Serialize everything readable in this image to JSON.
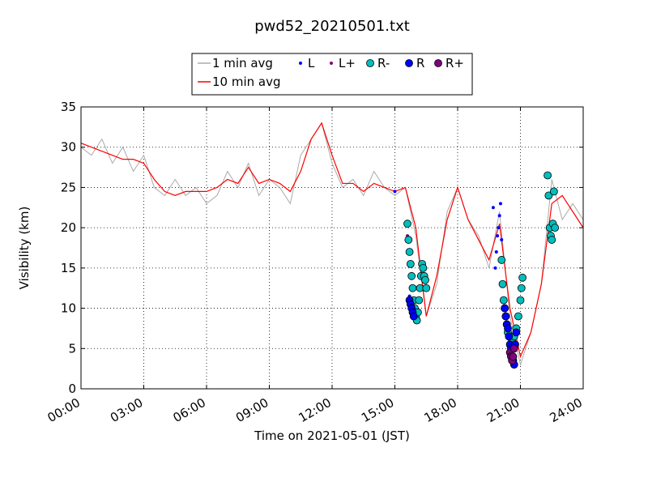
{
  "chart_data": {
    "type": "line",
    "title": "pwd52_20210501.txt",
    "xlabel": "Time on 2021-05-01 (JST)",
    "ylabel": "Visibility (km)",
    "xlim": [
      "00:00",
      "24:00"
    ],
    "ylim": [
      0,
      35
    ],
    "x_unit": "hour of day (JST)",
    "x_ticks": [
      0,
      3,
      6,
      9,
      12,
      15,
      18,
      21,
      24
    ],
    "x_tick_labels": [
      "00:00",
      "03:00",
      "06:00",
      "09:00",
      "12:00",
      "15:00",
      "18:00",
      "21:00",
      "24:00"
    ],
    "y_ticks": [
      0,
      5,
      10,
      15,
      20,
      25,
      30,
      35
    ],
    "y_tick_labels": [
      "0",
      "5",
      "10",
      "15",
      "20",
      "25",
      "30",
      "35"
    ],
    "grid": true,
    "legend_position": "top-center",
    "series": [
      {
        "name": "1 min avg",
        "kind": "line",
        "color": "#aaaaaa",
        "x": [
          0,
          0.5,
          1,
          1.5,
          2,
          2.5,
          3,
          3.5,
          4,
          4.5,
          5,
          5.5,
          6,
          6.5,
          7,
          7.5,
          8,
          8.5,
          9,
          9.5,
          10,
          10.5,
          11,
          11.5,
          12,
          12.5,
          13,
          13.5,
          14,
          14.5,
          15,
          15.5,
          16,
          16.5,
          17,
          17.5,
          18,
          18.5,
          19,
          19.5,
          20,
          20.5,
          21,
          21.5,
          22,
          22.5,
          23,
          23.5,
          24
        ],
        "y": [
          30,
          29,
          31,
          28,
          30,
          27,
          29,
          25,
          24,
          26,
          24,
          25,
          23,
          24,
          27,
          25,
          28,
          24,
          26,
          25,
          23,
          29,
          31,
          33,
          28,
          25,
          26,
          24,
          27,
          25,
          24,
          25,
          19,
          9,
          13,
          22,
          25,
          21,
          19,
          15,
          22,
          9,
          3,
          7,
          13,
          26,
          21,
          23,
          21
        ]
      },
      {
        "name": "10 min avg",
        "kind": "line",
        "color": "#ff0000",
        "x": [
          0,
          0.5,
          1,
          1.5,
          2,
          2.5,
          3,
          3.5,
          4,
          4.5,
          5,
          5.5,
          6,
          6.5,
          7,
          7.5,
          8,
          8.5,
          9,
          9.5,
          10,
          10.5,
          11,
          11.5,
          12,
          12.5,
          13,
          13.5,
          14,
          14.5,
          15,
          15.5,
          16,
          16.5,
          17,
          17.5,
          18,
          18.5,
          19,
          19.5,
          20,
          20.5,
          21,
          21.5,
          22,
          22.5,
          23,
          23.5,
          24
        ],
        "y": [
          30.5,
          30,
          29.5,
          29,
          28.5,
          28.5,
          28,
          26,
          24.5,
          24,
          24.5,
          24.5,
          24.5,
          25,
          26,
          25.5,
          27.5,
          25.5,
          26,
          25.5,
          24.5,
          27,
          31,
          33,
          29,
          25.5,
          25.5,
          24.5,
          25.5,
          25,
          24.5,
          25,
          20,
          9,
          14,
          21,
          25,
          21,
          18.5,
          16,
          20.5,
          10,
          4,
          7,
          13,
          23,
          24,
          22,
          20
        ]
      },
      {
        "name": "L",
        "kind": "markers",
        "color": "#0000ff",
        "x": [
          15.0,
          15.7,
          15.75,
          15.8,
          19.7,
          19.8,
          19.85,
          19.9,
          19.95,
          20.0,
          20.05,
          20.1
        ],
        "y": [
          24.5,
          11.5,
          11,
          10.5,
          22.5,
          15,
          17,
          19,
          20,
          21.5,
          23,
          18.5
        ]
      },
      {
        "name": "L+",
        "kind": "markers",
        "color": "#800080",
        "x": [
          15.6,
          15.62,
          15.65
        ],
        "y": [
          19,
          17,
          15.5
        ]
      },
      {
        "name": "R-",
        "kind": "markers",
        "color": "#00bfbf",
        "x": [
          15.6,
          15.65,
          15.7,
          15.75,
          15.8,
          15.85,
          15.9,
          15.95,
          16.0,
          16.05,
          16.1,
          16.15,
          16.2,
          16.25,
          16.3,
          16.35,
          16.4,
          16.45,
          16.5,
          20.1,
          20.15,
          20.2,
          20.25,
          20.3,
          20.35,
          20.4,
          20.5,
          20.6,
          20.7,
          20.8,
          20.9,
          21.0,
          21.05,
          21.1,
          22.3,
          22.35,
          22.4,
          22.45,
          22.5,
          22.55,
          22.6,
          22.65
        ],
        "y": [
          20.5,
          18.5,
          17,
          15.5,
          14,
          12.5,
          11,
          10,
          9,
          8.5,
          9.5,
          11,
          12.5,
          14,
          15.5,
          15,
          14,
          13.5,
          12.5,
          16,
          13,
          11,
          10,
          9,
          8,
          7,
          6.5,
          6,
          6.5,
          7.5,
          9,
          11,
          12.5,
          13.8,
          26.5,
          24,
          20,
          19,
          18.5,
          20.5,
          24.5,
          20
        ]
      },
      {
        "name": "R",
        "kind": "markers",
        "color": "#0000ff",
        "x": [
          15.7,
          15.75,
          15.8,
          15.85,
          15.9,
          20.25,
          20.3,
          20.35,
          20.4,
          20.45,
          20.5,
          20.55,
          20.6,
          20.65,
          20.7,
          20.75,
          20.8
        ],
        "y": [
          11,
          10.5,
          10,
          9.5,
          9,
          10,
          9,
          8,
          7.5,
          6.5,
          5.5,
          5,
          4,
          3.5,
          3,
          5.5,
          7
        ]
      },
      {
        "name": "R+",
        "kind": "markers",
        "color": "#800080",
        "x": [
          20.5,
          20.55,
          20.6,
          20.65,
          20.7
        ],
        "y": [
          4.5,
          4,
          3.5,
          4,
          5
        ]
      }
    ]
  }
}
